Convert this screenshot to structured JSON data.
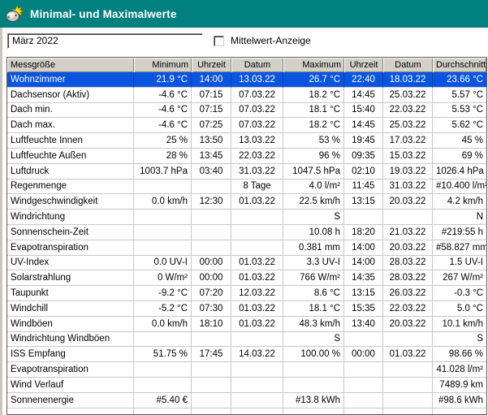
{
  "window": {
    "title": "Minimal- und Maximalwerte",
    "icon": "weather-station-icon"
  },
  "controls": {
    "period_value": "März 2022",
    "mittelwert_label": "Mittelwert-Anzeige",
    "mittelwert_checked": false
  },
  "table": {
    "columns": [
      "Messgröße",
      "Minimum",
      "Uhrzeit",
      "Datum",
      "Maximum",
      "Uhrzeit",
      "Datum",
      "Durchschnitt"
    ],
    "selected_row": 0,
    "rows": [
      [
        "Wohnzimmer",
        "21.9 °C",
        "14:00",
        "13.03.22",
        "26.7 °C",
        "22:40",
        "18.03.22",
        "23.66 °C"
      ],
      [
        "Dachsensor (Aktiv)",
        "-4.6 °C",
        "07:15",
        "07.03.22",
        "18.2 °C",
        "14:45",
        "25.03.22",
        "5.57 °C"
      ],
      [
        "Dach min.",
        "-4.6 °C",
        "07:15",
        "07.03.22",
        "18.1 °C",
        "15:40",
        "22.03.22",
        "5.53 °C"
      ],
      [
        "Dach max.",
        "-4.6 °C",
        "07:25",
        "07.03.22",
        "18.2 °C",
        "14:45",
        "25.03.22",
        "5.62 °C"
      ],
      [
        "Luftfeuchte Innen",
        "25 %",
        "13:50",
        "13.03.22",
        "53 %",
        "19:45",
        "17.03.22",
        "45 %"
      ],
      [
        "Luftfeuchte Außen",
        "28 %",
        "13:45",
        "22.03.22",
        "96 %",
        "09:35",
        "15.03.22",
        "69 %"
      ],
      [
        "Luftdruck",
        "1003.7 hPa",
        "03:40",
        "31.03.22",
        "1047.5 hPa",
        "02:10",
        "19.03.22",
        "1026.4 hPa"
      ],
      [
        "Regenmenge",
        "",
        "",
        "8 Tage",
        "4.0 l/m²",
        "11:45",
        "31.03.22",
        "#10.400 l/m²"
      ],
      [
        "Windgeschwindigkeit",
        "0.0 km/h",
        "12:30",
        "01.03.22",
        "22.5 km/h",
        "13:15",
        "20.03.22",
        "4.2 km/h"
      ],
      [
        "Windrichtung",
        "",
        "",
        "",
        "S",
        "",
        "",
        "N"
      ],
      [
        "Sonnenschein-Zeit",
        "",
        "",
        "",
        "10.08 h",
        "18:20",
        "21.03.22",
        "#219:55 h"
      ],
      [
        "Evapotranspiration",
        "",
        "",
        "",
        "0.381 mm",
        "14:00",
        "20.03.22",
        "#58.827 mm"
      ],
      [
        "UV-Index",
        "0.0 UV-I",
        "00:00",
        "01.03.22",
        "3.3 UV-I",
        "14:00",
        "28.03.22",
        "1.5 UV-I"
      ],
      [
        "Solarstrahlung",
        "0 W/m²",
        "00:00",
        "01.03.22",
        "766 W/m²",
        "14:35",
        "28.03.22",
        "267 W/m²"
      ],
      [
        "Taupunkt",
        "-9.2 °C",
        "07:20",
        "12.03.22",
        "8.6 °C",
        "13:15",
        "26.03.22",
        "-0.3 °C"
      ],
      [
        "Windchill",
        "-5.2 °C",
        "07:30",
        "01.03.22",
        "18.1 °C",
        "15:35",
        "22.03.22",
        "5.0 °C"
      ],
      [
        "Windböen",
        "0.0 km/h",
        "18:10",
        "01.03.22",
        "48.3 km/h",
        "13:40",
        "20.03.22",
        "10.1 km/h"
      ],
      [
        "Windrichtung Windböen",
        "",
        "",
        "",
        "S",
        "",
        "",
        "S"
      ],
      [
        "ISS Empfang",
        "51.75 %",
        "17:45",
        "14.03.22",
        "100.00 %",
        "00:00",
        "01.03.22",
        "98.66 %"
      ],
      [
        "Evapotranspiration",
        "",
        "",
        "",
        "",
        "",
        "",
        "41.028 l/m²"
      ],
      [
        "Wind Verlauf",
        "",
        "",
        "",
        "",
        "",
        "",
        "7489.9 km"
      ],
      [
        "Sonnenenergie",
        "#5.40 €",
        "",
        "",
        "#13.8 kWh",
        "",
        "",
        "#98.6 kWh"
      ]
    ]
  },
  "colors": {
    "titlebar": "#00807E",
    "selection": "#0A55E0",
    "selection_separator": "#0A3FAE",
    "header_bg": "#D4D0C8",
    "grid_line": "#C8C8C8",
    "title_text": "#FFFFFF"
  }
}
